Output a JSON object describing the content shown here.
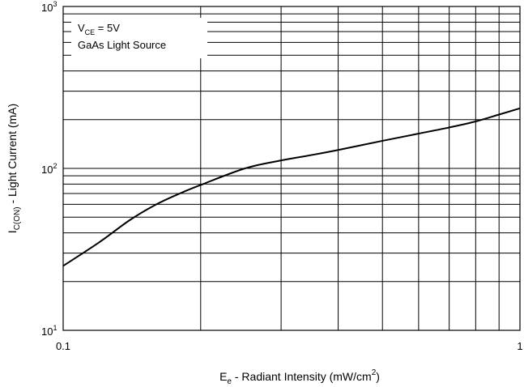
{
  "chart_data": {
    "type": "line",
    "title": "",
    "x_scale": "log",
    "y_scale": "log",
    "xlim": [
      0.1,
      1
    ],
    "ylim": [
      10,
      1000
    ],
    "grid": true,
    "x_tick_labels": [
      {
        "value": 0.1,
        "label": "0.1"
      },
      {
        "value": 1,
        "label": "1"
      }
    ],
    "y_tick_labels": [
      {
        "value": 1000,
        "base": "10",
        "exp": "3"
      },
      {
        "value": 100,
        "base": "10",
        "exp": "2"
      },
      {
        "value": 10,
        "base": "10",
        "exp": "1"
      }
    ],
    "xlabel": {
      "main": "E",
      "sub": "e",
      "rest": " - Radiant Intensity (mW/cm",
      "sup": "2",
      "close": ")"
    },
    "ylabel": {
      "main": "I",
      "sub": "C(ON)",
      "rest": "  - Light Current (mA)"
    },
    "annotations": [
      {
        "main": "V",
        "sub": "CE",
        "rest": " = 5V"
      },
      {
        "text": "GaAs Light Source"
      }
    ],
    "series": [
      {
        "x": [
          0.1,
          0.12,
          0.14,
          0.16,
          0.18,
          0.2,
          0.25,
          0.3,
          0.35,
          0.4,
          0.5,
          0.6,
          0.7,
          0.8,
          0.9,
          1.0
        ],
        "y": [
          25,
          35,
          48,
          60,
          70,
          79,
          100,
          112,
          121,
          130,
          148,
          164,
          179,
          195,
          215,
          235
        ],
        "color": "#000000"
      }
    ]
  }
}
